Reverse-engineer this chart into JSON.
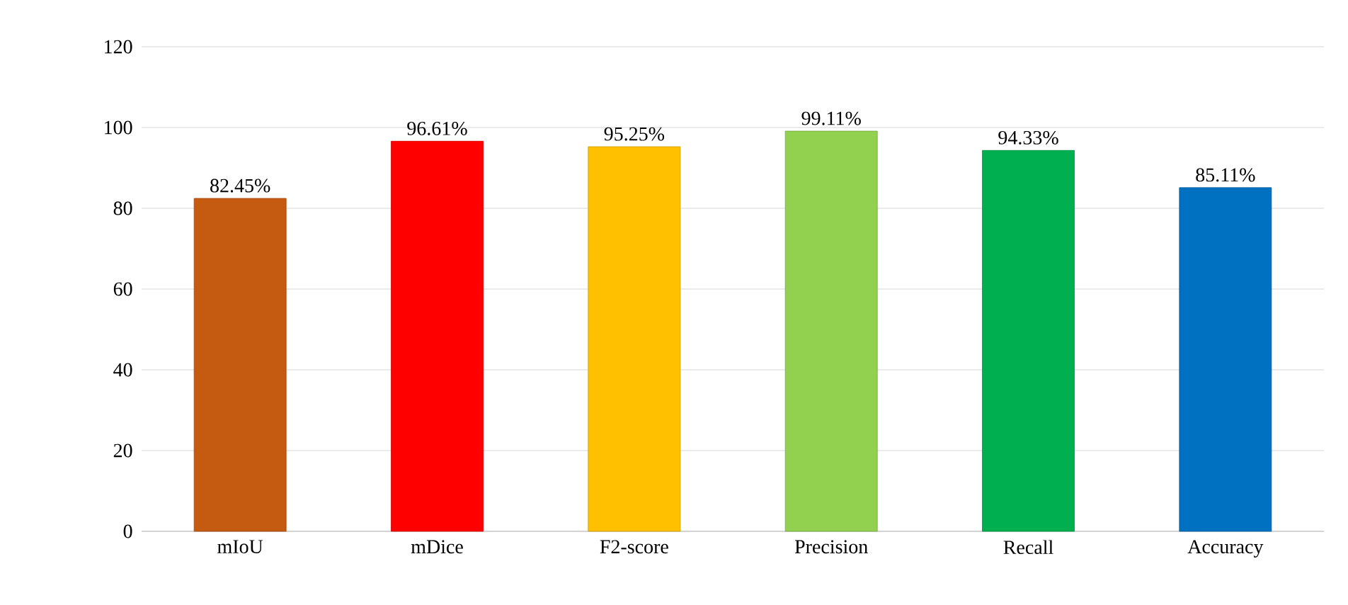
{
  "chart_data": {
    "type": "bar",
    "categories": [
      "mIoU",
      "mDice",
      "F2-score",
      "Precision",
      "Recall",
      "Accuracy"
    ],
    "values": [
      82.45,
      96.61,
      95.25,
      99.11,
      94.33,
      85.11
    ],
    "colors": [
      "#c55a11",
      "#ff0000",
      "#ffc000",
      "#92d050",
      "#00b050",
      "#0070c0"
    ],
    "value_labels": [
      "82.45%",
      "96.61%",
      "95.25%",
      "99.11%",
      "94.33%",
      "85.11%"
    ],
    "ylim": [
      0,
      120
    ],
    "yticks": [
      0,
      20,
      40,
      60,
      80,
      100,
      120
    ],
    "grid": "y"
  }
}
